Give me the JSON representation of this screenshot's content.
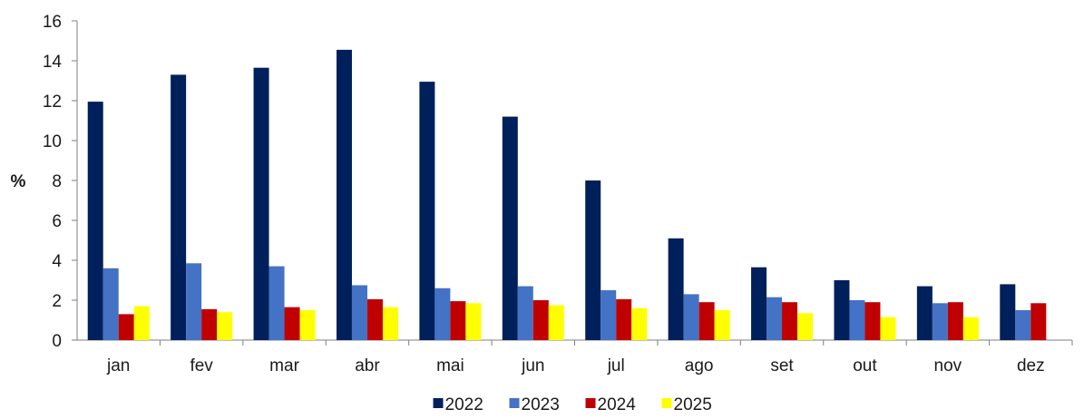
{
  "chart_data": {
    "type": "bar",
    "title": "",
    "xlabel": "",
    "ylabel": "%",
    "ylim": [
      0,
      16
    ],
    "yticks": [
      0,
      2,
      4,
      6,
      8,
      10,
      12,
      14,
      16
    ],
    "grid": false,
    "legend_position": "bottom",
    "categories": [
      "jan",
      "fev",
      "mar",
      "abr",
      "mai",
      "jun",
      "jul",
      "ago",
      "set",
      "out",
      "nov",
      "dez"
    ],
    "series": [
      {
        "name": "2022",
        "color": "#00205B",
        "values": [
          11.95,
          13.3,
          13.65,
          14.55,
          12.95,
          11.2,
          8.0,
          5.1,
          3.65,
          3.0,
          2.7,
          2.8
        ]
      },
      {
        "name": "2023",
        "color": "#4472C4",
        "values": [
          3.6,
          3.85,
          3.7,
          2.75,
          2.6,
          2.7,
          2.5,
          2.3,
          2.15,
          2.0,
          1.85,
          1.5
        ]
      },
      {
        "name": "2024",
        "color": "#C00000",
        "values": [
          1.3,
          1.55,
          1.65,
          2.05,
          1.95,
          2.0,
          2.05,
          1.9,
          1.9,
          1.9,
          1.9,
          1.85
        ]
      },
      {
        "name": "2025",
        "color": "#FFFF00",
        "values": [
          1.7,
          1.4,
          1.5,
          1.65,
          1.85,
          1.75,
          1.6,
          1.5,
          1.35,
          1.15,
          1.15,
          null
        ]
      }
    ]
  }
}
